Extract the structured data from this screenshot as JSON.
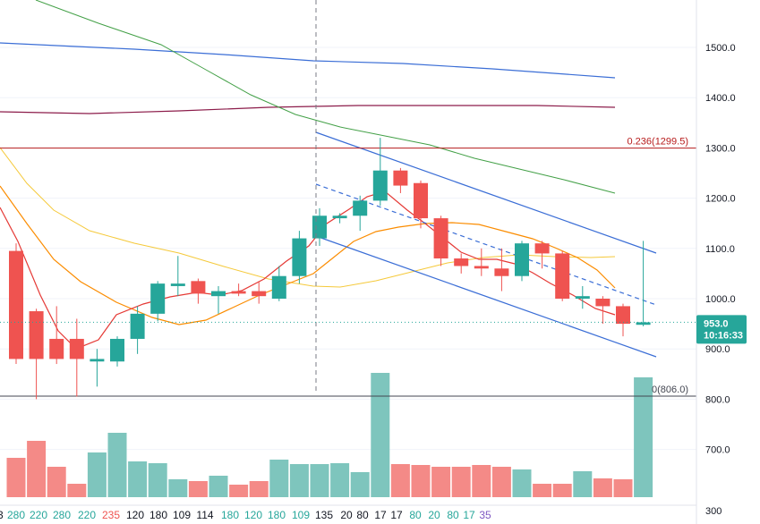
{
  "chart_data": {
    "type": "candlestick",
    "y_axis": {
      "range": [
        300,
        1610
      ],
      "ticks": [
        {
          "value": 1500,
          "label": "1500.0"
        },
        {
          "value": 1400,
          "label": "1400.0"
        },
        {
          "value": 1300,
          "label": "1300.0"
        },
        {
          "value": 1200,
          "label": "1200.0"
        },
        {
          "value": 1100,
          "label": "1100.0"
        },
        {
          "value": 1000,
          "label": "1000.0"
        },
        {
          "value": 900,
          "label": "900.0"
        },
        {
          "value": 800,
          "label": "800.0"
        },
        {
          "value": 700,
          "label": "700.0"
        },
        {
          "value": 300,
          "label": "300"
        }
      ]
    },
    "candles": [
      {
        "o": 1095,
        "h": 1110,
        "l": 870,
        "c": 880
      },
      {
        "o": 975,
        "h": 980,
        "l": 800,
        "c": 880
      },
      {
        "o": 920,
        "h": 985,
        "l": 870,
        "c": 880
      },
      {
        "o": 920,
        "h": 960,
        "l": 805,
        "c": 880
      },
      {
        "o": 875,
        "h": 900,
        "l": 825,
        "c": 880
      },
      {
        "o": 875,
        "h": 925,
        "l": 865,
        "c": 920
      },
      {
        "o": 920,
        "h": 985,
        "l": 890,
        "c": 970
      },
      {
        "o": 970,
        "h": 1035,
        "l": 955,
        "c": 1030
      },
      {
        "o": 1025,
        "h": 1085,
        "l": 1005,
        "c": 1030
      },
      {
        "o": 1035,
        "h": 1040,
        "l": 990,
        "c": 1010
      },
      {
        "o": 1005,
        "h": 1025,
        "l": 970,
        "c": 1015
      },
      {
        "o": 1015,
        "h": 1030,
        "l": 1005,
        "c": 1010
      },
      {
        "o": 1015,
        "h": 1035,
        "l": 990,
        "c": 1005
      },
      {
        "o": 1000,
        "h": 1065,
        "l": 995,
        "c": 1045
      },
      {
        "o": 1045,
        "h": 1135,
        "l": 1030,
        "c": 1120
      },
      {
        "o": 1120,
        "h": 1180,
        "l": 1105,
        "c": 1165
      },
      {
        "o": 1160,
        "h": 1170,
        "l": 1150,
        "c": 1165
      },
      {
        "o": 1165,
        "h": 1205,
        "l": 1135,
        "c": 1195
      },
      {
        "o": 1195,
        "h": 1320,
        "l": 1185,
        "c": 1255
      },
      {
        "o": 1255,
        "h": 1260,
        "l": 1210,
        "c": 1225
      },
      {
        "o": 1230,
        "h": 1235,
        "l": 1140,
        "c": 1160
      },
      {
        "o": 1160,
        "h": 1165,
        "l": 1065,
        "c": 1080
      },
      {
        "o": 1080,
        "h": 1090,
        "l": 1050,
        "c": 1065
      },
      {
        "o": 1065,
        "h": 1100,
        "l": 1045,
        "c": 1060
      },
      {
        "o": 1060,
        "h": 1100,
        "l": 1015,
        "c": 1045
      },
      {
        "o": 1045,
        "h": 1115,
        "l": 1035,
        "c": 1110
      },
      {
        "o": 1110,
        "h": 1115,
        "l": 1060,
        "c": 1090
      },
      {
        "o": 1090,
        "h": 1095,
        "l": 995,
        "c": 1000
      },
      {
        "o": 1000,
        "h": 1025,
        "l": 980,
        "c": 1005
      },
      {
        "o": 1000,
        "h": 1005,
        "l": 950,
        "c": 985
      },
      {
        "o": 985,
        "h": 990,
        "l": 925,
        "c": 950
      },
      {
        "o": 948,
        "h": 1115,
        "l": 945,
        "c": 953
      }
    ],
    "volume_labels": [
      {
        "text": "280",
        "color": "#26a69a"
      },
      {
        "text": "220",
        "color": "#26a69a"
      },
      {
        "text": "280",
        "color": "#26a69a"
      },
      {
        "text": "220",
        "color": "#26a69a"
      },
      {
        "text": "235",
        "color": "#ef5350"
      },
      {
        "text": "120",
        "color": "#131722"
      },
      {
        "text": "180",
        "color": "#131722"
      },
      {
        "text": "109",
        "color": "#131722"
      },
      {
        "text": "114",
        "color": "#131722"
      },
      {
        "text": "180",
        "color": "#26a69a"
      },
      {
        "text": "120",
        "color": "#26a69a"
      },
      {
        "text": "180",
        "color": "#26a69a"
      },
      {
        "text": "109",
        "color": "#26a69a"
      },
      {
        "text": "135",
        "color": "#131722"
      },
      {
        "text": "20",
        "color": "#131722"
      },
      {
        "text": "80",
        "color": "#131722"
      },
      {
        "text": "17",
        "color": "#131722"
      },
      {
        "text": "17",
        "color": "#131722"
      },
      {
        "text": "80",
        "color": "#26a69a"
      },
      {
        "text": "20",
        "color": "#26a69a"
      },
      {
        "text": "80",
        "color": "#26a69a"
      },
      {
        "text": "17",
        "color": "#26a69a"
      },
      {
        "text": "35",
        "color": "#7e57c2"
      }
    ],
    "fib_levels": [
      {
        "value": 1299.5,
        "label": "0.236(1299.5)",
        "color": "#b71c1c"
      },
      {
        "value": 806,
        "label": "0(806.0)",
        "color": "#434651"
      }
    ],
    "last_price": {
      "value": 953,
      "price_label": "953.0",
      "time_label": "10:16:33",
      "color": "#26a69a"
    },
    "colors": {
      "up": "#26a69a",
      "down": "#ef5350",
      "up_volume": "#7ec5bd",
      "down_volume": "#f48a87"
    }
  }
}
